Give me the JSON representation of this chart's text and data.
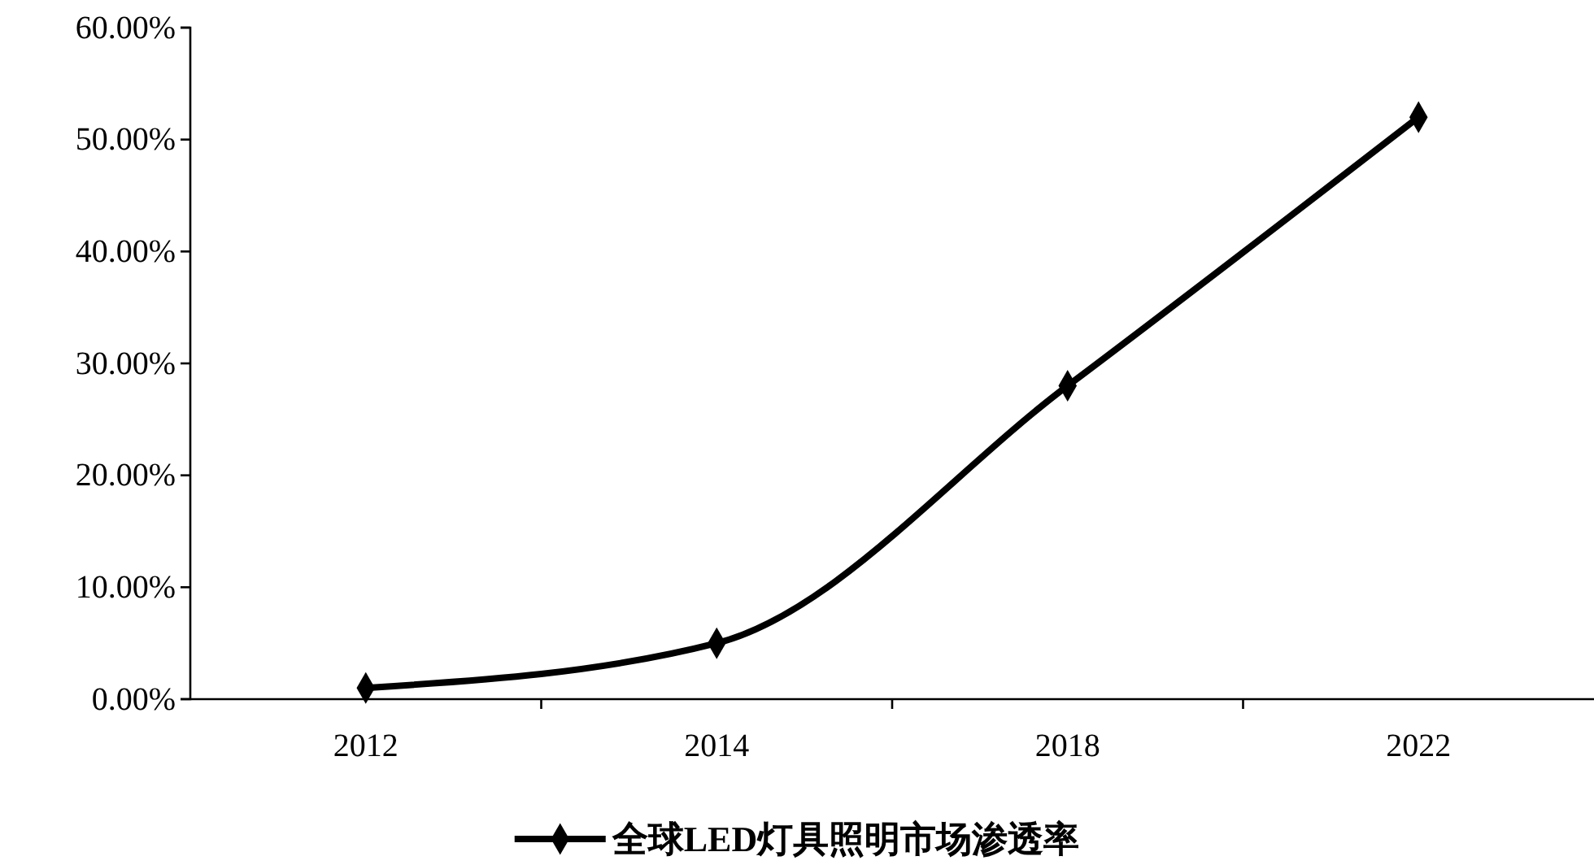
{
  "chart_data": {
    "type": "line",
    "categories": [
      "2012",
      "2014",
      "2018",
      "2022"
    ],
    "series": [
      {
        "name": "全球LED灯具照明市场渗透率",
        "color": "#000000",
        "values": [
          1,
          5,
          28,
          52
        ]
      }
    ],
    "ylim": [
      0,
      60
    ],
    "yticks": [
      {
        "value": 0,
        "label": "0.00%"
      },
      {
        "value": 10,
        "label": "10.00%"
      },
      {
        "value": 20,
        "label": "20.00%"
      },
      {
        "value": 30,
        "label": "30.00%"
      },
      {
        "value": 40,
        "label": "40.00%"
      },
      {
        "value": 50,
        "label": "50.00%"
      },
      {
        "value": 60,
        "label": "60.00%"
      }
    ],
    "marker": "diamond",
    "line_style": "solid",
    "legend": "bottom",
    "grid": false
  }
}
